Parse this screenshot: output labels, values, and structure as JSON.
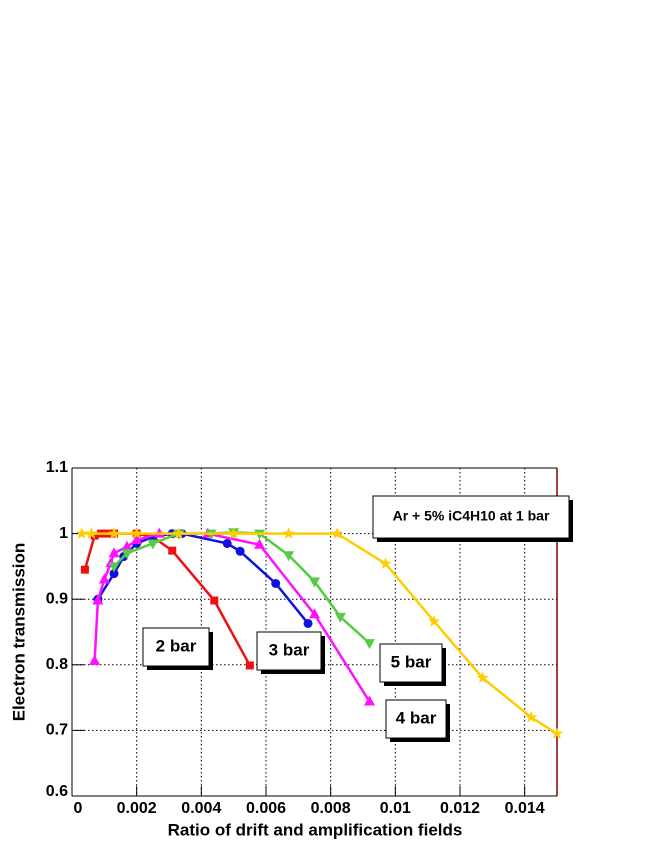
{
  "chart_data": {
    "type": "line",
    "xlabel": "Ratio of drift and amplification fields",
    "ylabel": "Electron transmission",
    "annotation": "Ar + 5% iC4H10 at 1 bar",
    "xlim": [
      0,
      0.015
    ],
    "ylim": [
      0.6,
      1.1
    ],
    "xticks": [
      0,
      0.002,
      0.004,
      0.006,
      0.008,
      0.01,
      0.012,
      0.014
    ],
    "yticks": [
      0.6,
      0.7,
      0.8,
      0.9,
      1,
      1.1
    ],
    "grid": true,
    "series": [
      {
        "name": "2 bar",
        "color": "#ee1111",
        "marker": "square",
        "x": [
          0.0004,
          0.0007,
          0.0009,
          0.0011,
          0.0013,
          0.002,
          0.0025,
          0.0031,
          0.0044,
          0.0055
        ],
        "values": [
          0.945,
          0.997,
          1.0,
          1.0,
          1.0,
          1.0,
          0.995,
          0.974,
          0.898,
          0.799
        ]
      },
      {
        "name": "3 bar",
        "color": "#1111dd",
        "marker": "circle",
        "x": [
          0.0008,
          0.0013,
          0.0016,
          0.002,
          0.0025,
          0.0031,
          0.0034,
          0.0048,
          0.0052,
          0.0063,
          0.0073
        ],
        "values": [
          0.9,
          0.939,
          0.965,
          0.985,
          0.995,
          1.0,
          1.0,
          0.985,
          0.973,
          0.924,
          0.863
        ]
      },
      {
        "name": "4 bar",
        "color": "#ff11ff",
        "marker": "triangle-up",
        "x": [
          0.0007,
          0.0008,
          0.001,
          0.0012,
          0.0013,
          0.0017,
          0.002,
          0.0027,
          0.0042,
          0.0058,
          0.0075,
          0.0092
        ],
        "values": [
          0.806,
          0.898,
          0.93,
          0.955,
          0.97,
          0.98,
          0.99,
          1.0,
          1.0,
          0.983,
          0.877,
          0.744
        ]
      },
      {
        "name": "5 bar",
        "color": "#55cc44",
        "marker": "triangle-down",
        "x": [
          0.0013,
          0.0017,
          0.0025,
          0.0033,
          0.0043,
          0.005,
          0.0058,
          0.0067,
          0.0075,
          0.0083,
          0.0092
        ],
        "values": [
          0.95,
          0.97,
          0.985,
          1.0,
          1.0,
          1.002,
          1.0,
          0.967,
          0.927,
          0.873,
          0.833
        ]
      },
      {
        "color": "#ffcc00",
        "marker": "star",
        "x": [
          0.0003,
          0.0006,
          0.0013,
          0.002,
          0.0033,
          0.005,
          0.0067,
          0.0082,
          0.0097,
          0.0112,
          0.0127,
          0.0142,
          0.015
        ],
        "values": [
          1.0,
          1.0,
          1.0,
          1.0,
          1.0,
          1.0,
          1.0,
          1.0,
          0.954,
          0.866,
          0.78,
          0.72,
          0.695
        ]
      }
    ]
  }
}
